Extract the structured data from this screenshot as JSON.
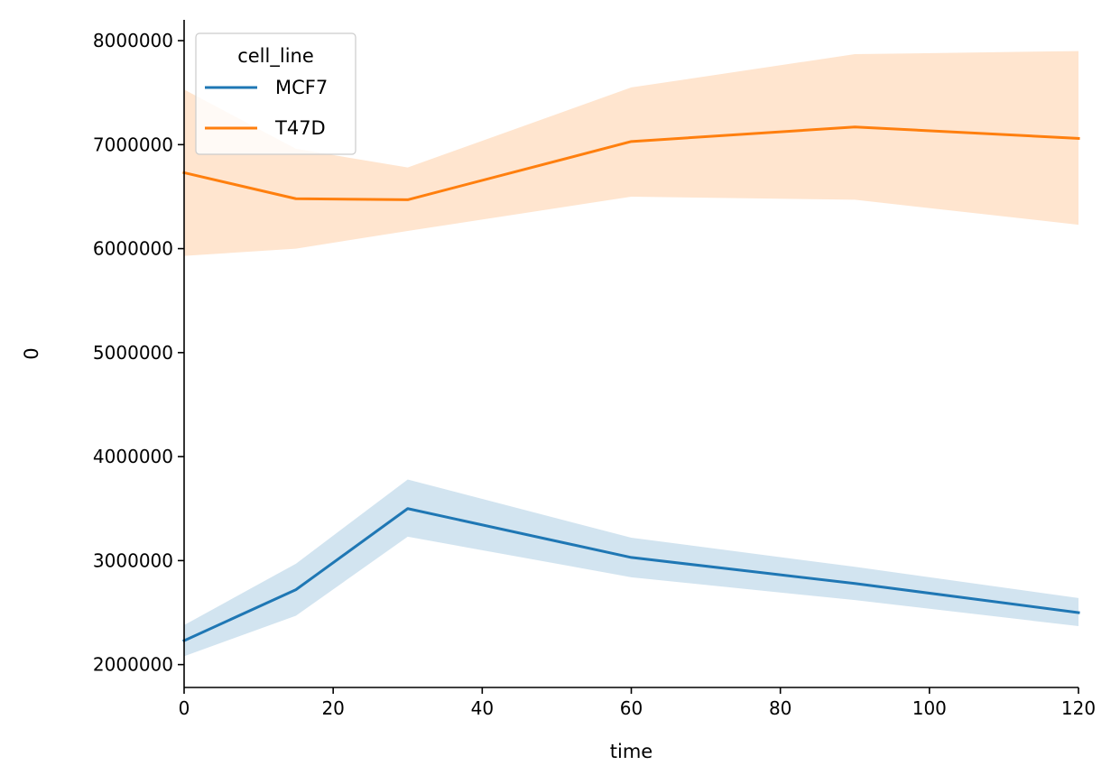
{
  "chart_data": {
    "type": "line",
    "xlabel": "time",
    "ylabel": "0",
    "xlim": [
      0,
      120
    ],
    "ylim": [
      1780000,
      8200000
    ],
    "xticks": [
      0,
      20,
      40,
      60,
      80,
      100,
      120
    ],
    "yticks": [
      2000000,
      3000000,
      4000000,
      5000000,
      6000000,
      7000000,
      8000000
    ],
    "grid": false,
    "legend": {
      "title": "cell_line",
      "placement": "top-left"
    },
    "x": [
      0,
      15,
      30,
      60,
      90,
      120
    ],
    "series": [
      {
        "name": "MCF7",
        "color": "#1f77b4",
        "band_color": "#1f77b4",
        "values": [
          2230000,
          2720000,
          3500000,
          3030000,
          2780000,
          2500000
        ],
        "ci_low": [
          2080000,
          2470000,
          3230000,
          2840000,
          2620000,
          2370000
        ],
        "ci_high": [
          2380000,
          2970000,
          3780000,
          3220000,
          2940000,
          2640000
        ]
      },
      {
        "name": "T47D",
        "color": "#ff7f0e",
        "band_color": "#ff7f0e",
        "values": [
          6730000,
          6480000,
          6470000,
          7030000,
          7170000,
          7060000
        ],
        "ci_low": [
          5930000,
          6000000,
          6170000,
          6500000,
          6470000,
          6230000
        ],
        "ci_high": [
          7530000,
          6960000,
          6780000,
          7550000,
          7870000,
          7900000
        ]
      }
    ]
  }
}
